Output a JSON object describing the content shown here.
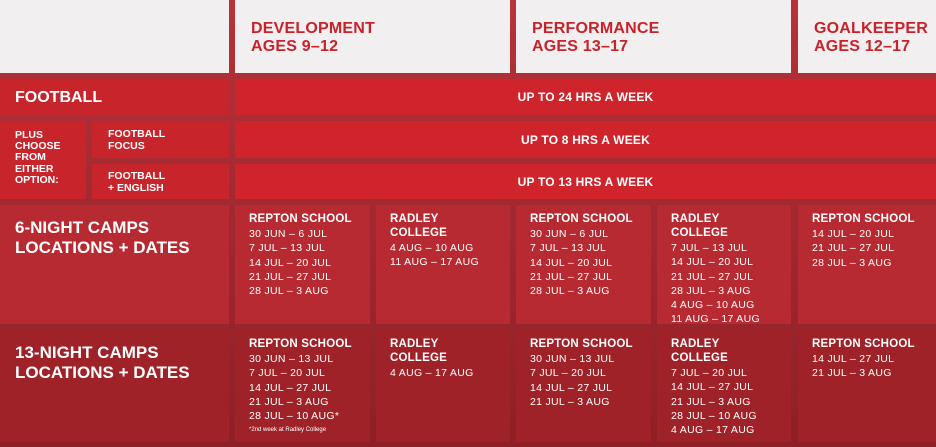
{
  "headers": {
    "development": {
      "line1": "DEVELOPMENT",
      "line2": "AGES 9–12"
    },
    "performance": {
      "line1": "PERFORMANCE",
      "line2": "AGES 13–17"
    },
    "goalkeeper": {
      "line1": "GOALKEEPER",
      "line2": "AGES 12–17"
    }
  },
  "football": {
    "label": "FOOTBALL",
    "hours": "UP TO 24 HRS A WEEK"
  },
  "options": {
    "plus_label": [
      "PLUS",
      "CHOOSE",
      "FROM",
      "EITHER",
      "OPTION:"
    ],
    "focus": {
      "label": [
        "FOOTBALL",
        "FOCUS"
      ],
      "hours": "UP TO 8 HRS A WEEK"
    },
    "english": {
      "label": [
        "FOOTBALL",
        "+ ENGLISH"
      ],
      "hours": "UP TO 13 HRS A WEEK"
    }
  },
  "six_night": {
    "title": [
      "6-NIGHT CAMPS",
      "LOCATIONS + DATES"
    ],
    "cells": [
      {
        "venue": "REPTON SCHOOL",
        "dates": [
          "30 JUN – 6 JUL",
          "7 JUL – 13 JUL",
          "14 JUL – 20 JUL",
          "21 JUL – 27 JUL",
          "28 JUL – 3 AUG"
        ]
      },
      {
        "venue": "RADLEY COLLEGE",
        "dates": [
          "4 AUG – 10 AUG",
          "11 AUG – 17 AUG"
        ]
      },
      {
        "venue": "REPTON SCHOOL",
        "dates": [
          "30 JUN – 6 JUL",
          "7 JUL – 13 JUL",
          "14 JUL – 20 JUL",
          "21 JUL – 27 JUL",
          "28 JUL – 3 AUG"
        ]
      },
      {
        "venue": "RADLEY COLLEGE",
        "dates": [
          "7 JUL – 13 JUL",
          "14 JUL – 20 JUL",
          "21 JUL – 27 JUL",
          "28 JUL – 3 AUG",
          "4 AUG – 10 AUG",
          "11 AUG – 17 AUG"
        ]
      },
      {
        "venue": "REPTON SCHOOL",
        "dates": [
          "14 JUL – 20 JUL",
          "21 JUL – 27 JUL",
          "28 JUL – 3 AUG"
        ]
      }
    ]
  },
  "thirteen_night": {
    "title": [
      "13-NIGHT CAMPS",
      "LOCATIONS + DATES"
    ],
    "cells": [
      {
        "venue": "REPTON SCHOOL",
        "dates": [
          "30 JUN – 13 JUL",
          "7 JUL – 20 JUL",
          "14 JUL – 27 JUL",
          "21 JUL – 3 AUG",
          "28 JUL – 10 AUG*"
        ],
        "note": "*2nd week at Radley College"
      },
      {
        "venue": "RADLEY COLLEGE",
        "dates": [
          "4 AUG – 17 AUG"
        ]
      },
      {
        "venue": "REPTON SCHOOL",
        "dates": [
          "30 JUN – 13 JUL",
          "7 JUL – 20 JUL",
          "14 JUL – 27 JUL",
          "21 JUL – 3 AUG"
        ]
      },
      {
        "venue": "RADLEY COLLEGE",
        "dates": [
          "7 JUL – 20 JUL",
          "14 JUL – 27 JUL",
          "21 JUL – 3 AUG",
          "28 JUL – 10 AUG",
          "4 AUG – 17 AUG"
        ]
      },
      {
        "venue": "REPTON SCHOOL",
        "dates": [
          "14 JUL – 27 JUL",
          "21 JUL – 3 AUG"
        ]
      }
    ]
  }
}
